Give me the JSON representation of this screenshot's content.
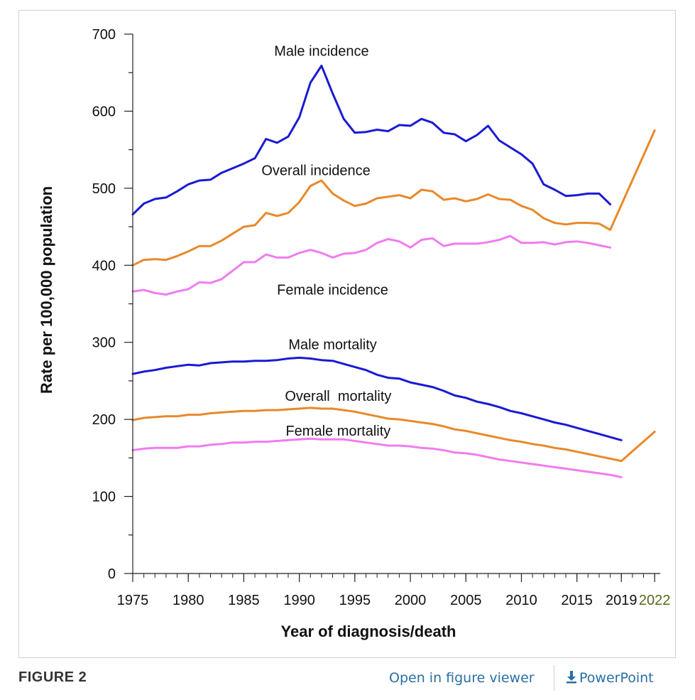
{
  "chart_data": {
    "type": "line",
    "xlabel": "Year of diagnosis/death",
    "ylabel": "Rate per 100,000 population",
    "xlim": [
      1975,
      2022.5
    ],
    "ylim": [
      0,
      700
    ],
    "x_ticks": [
      "1975",
      "1980",
      "1985",
      "1990",
      "1995",
      "2000",
      "2005",
      "2010",
      "2015",
      "2019",
      "2022"
    ],
    "y_ticks": [
      "0",
      "100",
      "200",
      "300",
      "400",
      "500",
      "600",
      "700"
    ],
    "grid": false,
    "legend": "none; series labeled inline",
    "series": [
      {
        "name": "Male incidence",
        "color": "#1a1ad4",
        "points": [
          [
            1975,
            466
          ],
          [
            1976,
            480
          ],
          [
            1977,
            486
          ],
          [
            1978,
            488
          ],
          [
            1979,
            496
          ],
          [
            1980,
            505
          ],
          [
            1981,
            510
          ],
          [
            1982,
            511
          ],
          [
            1983,
            520
          ],
          [
            1984,
            526
          ],
          [
            1985,
            532
          ],
          [
            1986,
            539
          ],
          [
            1987,
            564
          ],
          [
            1988,
            559
          ],
          [
            1989,
            567
          ],
          [
            1990,
            592
          ],
          [
            1991,
            637
          ],
          [
            1992,
            659
          ],
          [
            1993,
            623
          ],
          [
            1994,
            590
          ],
          [
            1995,
            572
          ],
          [
            1996,
            573
          ],
          [
            1997,
            576
          ],
          [
            1998,
            574
          ],
          [
            1999,
            582
          ],
          [
            2000,
            581
          ],
          [
            2001,
            590
          ],
          [
            2002,
            585
          ],
          [
            2003,
            572
          ],
          [
            2004,
            570
          ],
          [
            2005,
            561
          ],
          [
            2006,
            569
          ],
          [
            2007,
            581
          ],
          [
            2008,
            562
          ],
          [
            2009,
            553
          ],
          [
            2010,
            544
          ],
          [
            2011,
            532
          ],
          [
            2012,
            505
          ],
          [
            2013,
            498
          ],
          [
            2014,
            490
          ],
          [
            2015,
            491
          ],
          [
            2016,
            493
          ],
          [
            2017,
            493
          ],
          [
            2018,
            479
          ]
        ]
      },
      {
        "name": "Overall incidence",
        "color": "#e8892a",
        "points": [
          [
            1975,
            400
          ],
          [
            1976,
            407
          ],
          [
            1977,
            408
          ],
          [
            1978,
            407
          ],
          [
            1979,
            412
          ],
          [
            1980,
            418
          ],
          [
            1981,
            425
          ],
          [
            1982,
            425
          ],
          [
            1983,
            432
          ],
          [
            1984,
            441
          ],
          [
            1985,
            450
          ],
          [
            1986,
            452
          ],
          [
            1987,
            468
          ],
          [
            1988,
            464
          ],
          [
            1989,
            468
          ],
          [
            1990,
            482
          ],
          [
            1991,
            503
          ],
          [
            1992,
            510
          ],
          [
            1993,
            493
          ],
          [
            1994,
            484
          ],
          [
            1995,
            477
          ],
          [
            1996,
            480
          ],
          [
            1997,
            487
          ],
          [
            1998,
            489
          ],
          [
            1999,
            491
          ],
          [
            2000,
            487
          ],
          [
            2001,
            498
          ],
          [
            2002,
            496
          ],
          [
            2003,
            485
          ],
          [
            2004,
            487
          ],
          [
            2005,
            483
          ],
          [
            2006,
            486
          ],
          [
            2007,
            492
          ],
          [
            2008,
            486
          ],
          [
            2009,
            485
          ],
          [
            2010,
            477
          ],
          [
            2011,
            472
          ],
          [
            2012,
            461
          ],
          [
            2013,
            455
          ],
          [
            2014,
            453
          ],
          [
            2015,
            455
          ],
          [
            2016,
            455
          ],
          [
            2017,
            454
          ],
          [
            2018,
            446
          ],
          [
            2022,
            575
          ]
        ]
      },
      {
        "name": "Female incidence",
        "color": "#f07cf0",
        "points": [
          [
            1975,
            366
          ],
          [
            1976,
            368
          ],
          [
            1977,
            364
          ],
          [
            1978,
            362
          ],
          [
            1979,
            366
          ],
          [
            1980,
            369
          ],
          [
            1981,
            378
          ],
          [
            1982,
            377
          ],
          [
            1983,
            382
          ],
          [
            1984,
            393
          ],
          [
            1985,
            404
          ],
          [
            1986,
            404
          ],
          [
            1987,
            414
          ],
          [
            1988,
            410
          ],
          [
            1989,
            410
          ],
          [
            1990,
            416
          ],
          [
            1991,
            420
          ],
          [
            1992,
            416
          ],
          [
            1993,
            410
          ],
          [
            1994,
            415
          ],
          [
            1995,
            416
          ],
          [
            1996,
            420
          ],
          [
            1997,
            429
          ],
          [
            1998,
            434
          ],
          [
            1999,
            431
          ],
          [
            2000,
            423
          ],
          [
            2001,
            433
          ],
          [
            2002,
            435
          ],
          [
            2003,
            425
          ],
          [
            2004,
            428
          ],
          [
            2005,
            428
          ],
          [
            2006,
            428
          ],
          [
            2007,
            430
          ],
          [
            2008,
            433
          ],
          [
            2009,
            438
          ],
          [
            2010,
            429
          ],
          [
            2011,
            429
          ],
          [
            2012,
            430
          ],
          [
            2013,
            427
          ],
          [
            2014,
            430
          ],
          [
            2015,
            431
          ],
          [
            2016,
            429
          ],
          [
            2017,
            426
          ],
          [
            2018,
            423
          ]
        ]
      },
      {
        "name": "Male mortality",
        "color": "#1a1ad4",
        "points": [
          [
            1975,
            259
          ],
          [
            1976,
            262
          ],
          [
            1977,
            264
          ],
          [
            1978,
            267
          ],
          [
            1979,
            269
          ],
          [
            1980,
            271
          ],
          [
            1981,
            270
          ],
          [
            1982,
            273
          ],
          [
            1983,
            274
          ],
          [
            1984,
            275
          ],
          [
            1985,
            275
          ],
          [
            1986,
            276
          ],
          [
            1987,
            276
          ],
          [
            1988,
            277
          ],
          [
            1989,
            279
          ],
          [
            1990,
            280
          ],
          [
            1991,
            279
          ],
          [
            1992,
            277
          ],
          [
            1993,
            276
          ],
          [
            1994,
            272
          ],
          [
            1995,
            268
          ],
          [
            1996,
            264
          ],
          [
            1997,
            258
          ],
          [
            1998,
            254
          ],
          [
            1999,
            253
          ],
          [
            2000,
            248
          ],
          [
            2001,
            245
          ],
          [
            2002,
            242
          ],
          [
            2003,
            237
          ],
          [
            2004,
            231
          ],
          [
            2005,
            228
          ],
          [
            2006,
            223
          ],
          [
            2007,
            220
          ],
          [
            2008,
            216
          ],
          [
            2009,
            211
          ],
          [
            2010,
            208
          ],
          [
            2011,
            204
          ],
          [
            2012,
            200
          ],
          [
            2013,
            196
          ],
          [
            2014,
            193
          ],
          [
            2015,
            189
          ],
          [
            2016,
            185
          ],
          [
            2017,
            181
          ],
          [
            2018,
            177
          ],
          [
            2019,
            173
          ]
        ]
      },
      {
        "name": "Overall mortality",
        "color": "#e8892a",
        "points": [
          [
            1975,
            199
          ],
          [
            1976,
            202
          ],
          [
            1977,
            203
          ],
          [
            1978,
            204
          ],
          [
            1979,
            204
          ],
          [
            1980,
            206
          ],
          [
            1981,
            206
          ],
          [
            1982,
            208
          ],
          [
            1983,
            209
          ],
          [
            1984,
            210
          ],
          [
            1985,
            211
          ],
          [
            1986,
            211
          ],
          [
            1987,
            212
          ],
          [
            1988,
            212
          ],
          [
            1989,
            213
          ],
          [
            1990,
            214
          ],
          [
            1991,
            215
          ],
          [
            1992,
            214
          ],
          [
            1993,
            214
          ],
          [
            1994,
            212
          ],
          [
            1995,
            210
          ],
          [
            1996,
            207
          ],
          [
            1997,
            204
          ],
          [
            1998,
            201
          ],
          [
            1999,
            200
          ],
          [
            2000,
            198
          ],
          [
            2001,
            196
          ],
          [
            2002,
            194
          ],
          [
            2003,
            191
          ],
          [
            2004,
            187
          ],
          [
            2005,
            185
          ],
          [
            2006,
            182
          ],
          [
            2007,
            179
          ],
          [
            2008,
            176
          ],
          [
            2009,
            173
          ],
          [
            2010,
            171
          ],
          [
            2011,
            168
          ],
          [
            2012,
            166
          ],
          [
            2013,
            163
          ],
          [
            2014,
            161
          ],
          [
            2015,
            158
          ],
          [
            2016,
            155
          ],
          [
            2017,
            152
          ],
          [
            2018,
            149
          ],
          [
            2019,
            146
          ],
          [
            2022,
            184
          ]
        ]
      },
      {
        "name": "Female mortality",
        "color": "#f07cf0",
        "points": [
          [
            1975,
            160
          ],
          [
            1976,
            162
          ],
          [
            1977,
            163
          ],
          [
            1978,
            163
          ],
          [
            1979,
            163
          ],
          [
            1980,
            165
          ],
          [
            1981,
            165
          ],
          [
            1982,
            167
          ],
          [
            1983,
            168
          ],
          [
            1984,
            170
          ],
          [
            1985,
            170
          ],
          [
            1986,
            171
          ],
          [
            1987,
            171
          ],
          [
            1988,
            172
          ],
          [
            1989,
            173
          ],
          [
            1990,
            174
          ],
          [
            1991,
            175
          ],
          [
            1992,
            174
          ],
          [
            1993,
            174
          ],
          [
            1994,
            174
          ],
          [
            1995,
            172
          ],
          [
            1996,
            170
          ],
          [
            1997,
            168
          ],
          [
            1998,
            166
          ],
          [
            1999,
            166
          ],
          [
            2000,
            165
          ],
          [
            2001,
            163
          ],
          [
            2002,
            162
          ],
          [
            2003,
            160
          ],
          [
            2004,
            157
          ],
          [
            2005,
            156
          ],
          [
            2006,
            154
          ],
          [
            2007,
            151
          ],
          [
            2008,
            148
          ],
          [
            2009,
            146
          ],
          [
            2010,
            144
          ],
          [
            2011,
            142
          ],
          [
            2012,
            140
          ],
          [
            2013,
            138
          ],
          [
            2014,
            136
          ],
          [
            2015,
            134
          ],
          [
            2016,
            132
          ],
          [
            2017,
            130
          ],
          [
            2018,
            128
          ],
          [
            2019,
            125
          ]
        ]
      }
    ],
    "series_labels": [
      {
        "text": "Male incidence",
        "x": 1992,
        "y": 672
      },
      {
        "text": "Overall incidence",
        "x": 1991.5,
        "y": 517
      },
      {
        "text": "Female incidence",
        "x": 1993,
        "y": 362
      },
      {
        "text": "Male mortality",
        "x": 1993,
        "y": 291
      },
      {
        "text": "Overall  mortality",
        "x": 1993.5,
        "y": 224
      },
      {
        "text": "Female mortality",
        "x": 1993.5,
        "y": 179
      }
    ],
    "x_tick_highlight": {
      "2022": "#556b1a"
    }
  },
  "caption": {
    "figure_label": "FIGURE 2",
    "open_viewer": "Open in figure viewer",
    "powerpoint": "PowerPoint"
  }
}
